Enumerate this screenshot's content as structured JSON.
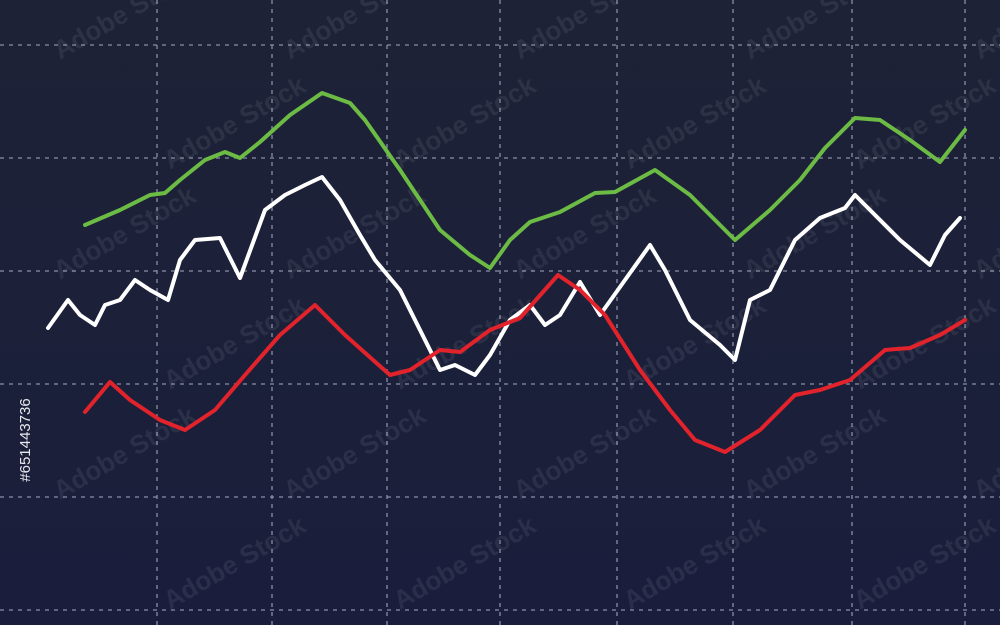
{
  "chart_data": {
    "type": "line",
    "watermark": "Adobe Stock",
    "stock_id": "#651443736",
    "grid": true,
    "xlim": [
      0,
      1000
    ],
    "ylim": [
      0,
      625
    ],
    "xticks": [
      157,
      272,
      387,
      500,
      617,
      733,
      852,
      965
    ],
    "yticks": [
      15,
      128,
      241,
      354,
      467,
      580
    ],
    "series": [
      {
        "color": "#6cbb45",
        "x": [
          85,
          120,
          150,
          165,
          180,
          205,
          225,
          240,
          260,
          290,
          322,
          350,
          365,
          400,
          440,
          470,
          490,
          510,
          530,
          560,
          595,
          615,
          655,
          690,
          735,
          770,
          800,
          825,
          855,
          880,
          910,
          940,
          965
        ],
        "values": [
          400,
          415,
          430,
          432,
          445,
          465,
          473,
          467,
          483,
          510,
          532,
          522,
          505,
          455,
          395,
          370,
          357,
          385,
          403,
          413,
          432,
          433,
          455,
          430,
          385,
          415,
          445,
          477,
          507,
          505,
          485,
          463,
          495
        ]
      },
      {
        "color": "#ffffff",
        "x": [
          48,
          68,
          80,
          95,
          105,
          120,
          135,
          150,
          168,
          180,
          195,
          220,
          240,
          265,
          285,
          305,
          322,
          340,
          360,
          375,
          400,
          420,
          440,
          455,
          475,
          490,
          510,
          530,
          545,
          560,
          580,
          600,
          625,
          650,
          665,
          690,
          720,
          735,
          750,
          770,
          795,
          820,
          845,
          855,
          870,
          900,
          930,
          945,
          960
        ],
        "values": [
          297,
          325,
          310,
          300,
          320,
          325,
          345,
          335,
          325,
          365,
          385,
          387,
          347,
          415,
          430,
          440,
          448,
          425,
          390,
          365,
          335,
          295,
          255,
          260,
          250,
          270,
          305,
          320,
          300,
          310,
          343,
          310,
          345,
          380,
          355,
          305,
          280,
          265,
          325,
          335,
          385,
          407,
          417,
          430,
          415,
          385,
          360,
          390,
          407
        ]
      },
      {
        "color": "#e2232b",
        "x": [
          85,
          110,
          130,
          160,
          185,
          215,
          245,
          280,
          315,
          345,
          390,
          410,
          440,
          460,
          490,
          520,
          558,
          580,
          605,
          640,
          670,
          695,
          725,
          760,
          795,
          820,
          850,
          885,
          910,
          940,
          965
        ],
        "values": [
          213,
          243,
          225,
          205,
          195,
          215,
          250,
          290,
          320,
          290,
          250,
          255,
          275,
          273,
          295,
          307,
          350,
          335,
          310,
          255,
          215,
          185,
          173,
          195,
          230,
          235,
          245,
          275,
          277,
          290,
          305
        ]
      }
    ]
  }
}
